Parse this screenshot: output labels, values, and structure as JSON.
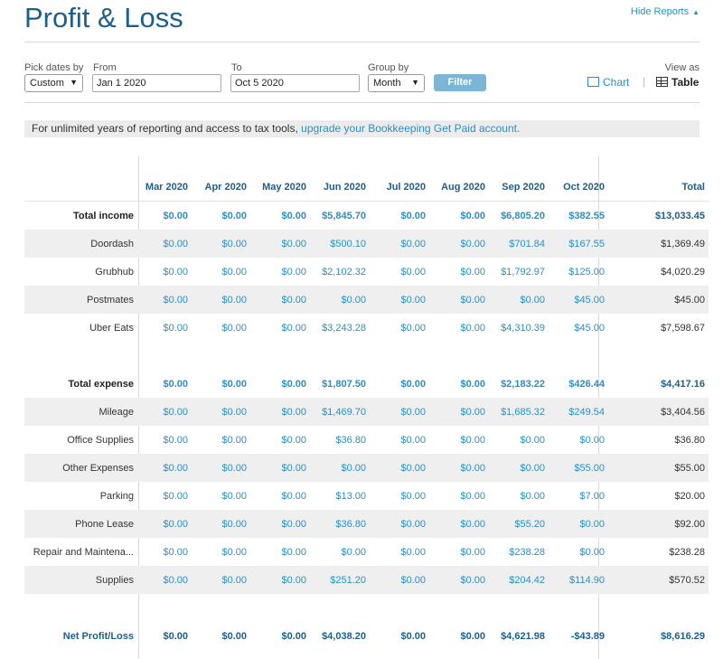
{
  "header": {
    "title": "Profit & Loss",
    "hide_reports": "Hide Reports",
    "caret_icon": "caret-up-icon"
  },
  "controls": {
    "pick_dates_label": "Pick dates by",
    "pick_dates_value": "Custom",
    "from_label": "From",
    "from_value": "Jan 1 2020",
    "to_label": "To",
    "to_value": "Oct 5 2020",
    "group_by_label": "Group by",
    "group_by_value": "Month",
    "filter_label": "Filter",
    "view_as_label": "View as",
    "chart_label": "Chart",
    "table_label": "Table",
    "separator": "|"
  },
  "banner": {
    "text": "For unlimited years of reporting and access to tax tools, ",
    "link": "upgrade your Bookkeeping Get Paid account."
  },
  "table": {
    "columns": [
      "Mar 2020",
      "Apr 2020",
      "May 2020",
      "Jun 2020",
      "Jul 2020",
      "Aug 2020",
      "Sep 2020",
      "Oct 2020"
    ],
    "total_header": "Total",
    "rows": [
      {
        "label": "Total income",
        "values": [
          "$0.00",
          "$0.00",
          "$0.00",
          "$5,845.70",
          "$0.00",
          "$0.00",
          "$6,805.20",
          "$382.55"
        ],
        "total": "$13,033.45"
      },
      {
        "label": "Doordash",
        "values": [
          "$0.00",
          "$0.00",
          "$0.00",
          "$500.10",
          "$0.00",
          "$0.00",
          "$701.84",
          "$167.55"
        ],
        "total": "$1,369.49"
      },
      {
        "label": "Grubhub",
        "values": [
          "$0.00",
          "$0.00",
          "$0.00",
          "$2,102.32",
          "$0.00",
          "$0.00",
          "$1,792.97",
          "$125.00"
        ],
        "total": "$4,020.29"
      },
      {
        "label": "Postmates",
        "values": [
          "$0.00",
          "$0.00",
          "$0.00",
          "$0.00",
          "$0.00",
          "$0.00",
          "$0.00",
          "$45.00"
        ],
        "total": "$45.00"
      },
      {
        "label": "Uber Eats",
        "values": [
          "$0.00",
          "$0.00",
          "$0.00",
          "$3,243.28",
          "$0.00",
          "$0.00",
          "$4,310.39",
          "$45.00"
        ],
        "total": "$7,598.67"
      },
      {
        "label": "Total expense",
        "values": [
          "$0.00",
          "$0.00",
          "$0.00",
          "$1,807.50",
          "$0.00",
          "$0.00",
          "$2,183.22",
          "$426.44"
        ],
        "total": "$4,417.16"
      },
      {
        "label": "Mileage",
        "values": [
          "$0.00",
          "$0.00",
          "$0.00",
          "$1,469.70",
          "$0.00",
          "$0.00",
          "$1,685.32",
          "$249.54"
        ],
        "total": "$3,404.56"
      },
      {
        "label": "Office Supplies",
        "values": [
          "$0.00",
          "$0.00",
          "$0.00",
          "$36.80",
          "$0.00",
          "$0.00",
          "$0.00",
          "$0.00"
        ],
        "total": "$36.80"
      },
      {
        "label": "Other Expenses",
        "values": [
          "$0.00",
          "$0.00",
          "$0.00",
          "$0.00",
          "$0.00",
          "$0.00",
          "$0.00",
          "$55.00"
        ],
        "total": "$55.00"
      },
      {
        "label": "Parking",
        "values": [
          "$0.00",
          "$0.00",
          "$0.00",
          "$13.00",
          "$0.00",
          "$0.00",
          "$0.00",
          "$7.00"
        ],
        "total": "$20.00"
      },
      {
        "label": "Phone Lease",
        "values": [
          "$0.00",
          "$0.00",
          "$0.00",
          "$36.80",
          "$0.00",
          "$0.00",
          "$55.20",
          "$0.00"
        ],
        "total": "$92.00"
      },
      {
        "label": "Repair and Maintena...",
        "values": [
          "$0.00",
          "$0.00",
          "$0.00",
          "$0.00",
          "$0.00",
          "$0.00",
          "$238.28",
          "$0.00"
        ],
        "total": "$238.28"
      },
      {
        "label": "Supplies",
        "values": [
          "$0.00",
          "$0.00",
          "$0.00",
          "$251.20",
          "$0.00",
          "$0.00",
          "$204.42",
          "$114.90"
        ],
        "total": "$570.52"
      },
      {
        "label": "Net Profit/Loss",
        "values": [
          "$0.00",
          "$0.00",
          "$0.00",
          "$4,038.20",
          "$0.00",
          "$0.00",
          "$4,621.98",
          "-$43.89"
        ],
        "total": "$8,616.29"
      }
    ]
  }
}
